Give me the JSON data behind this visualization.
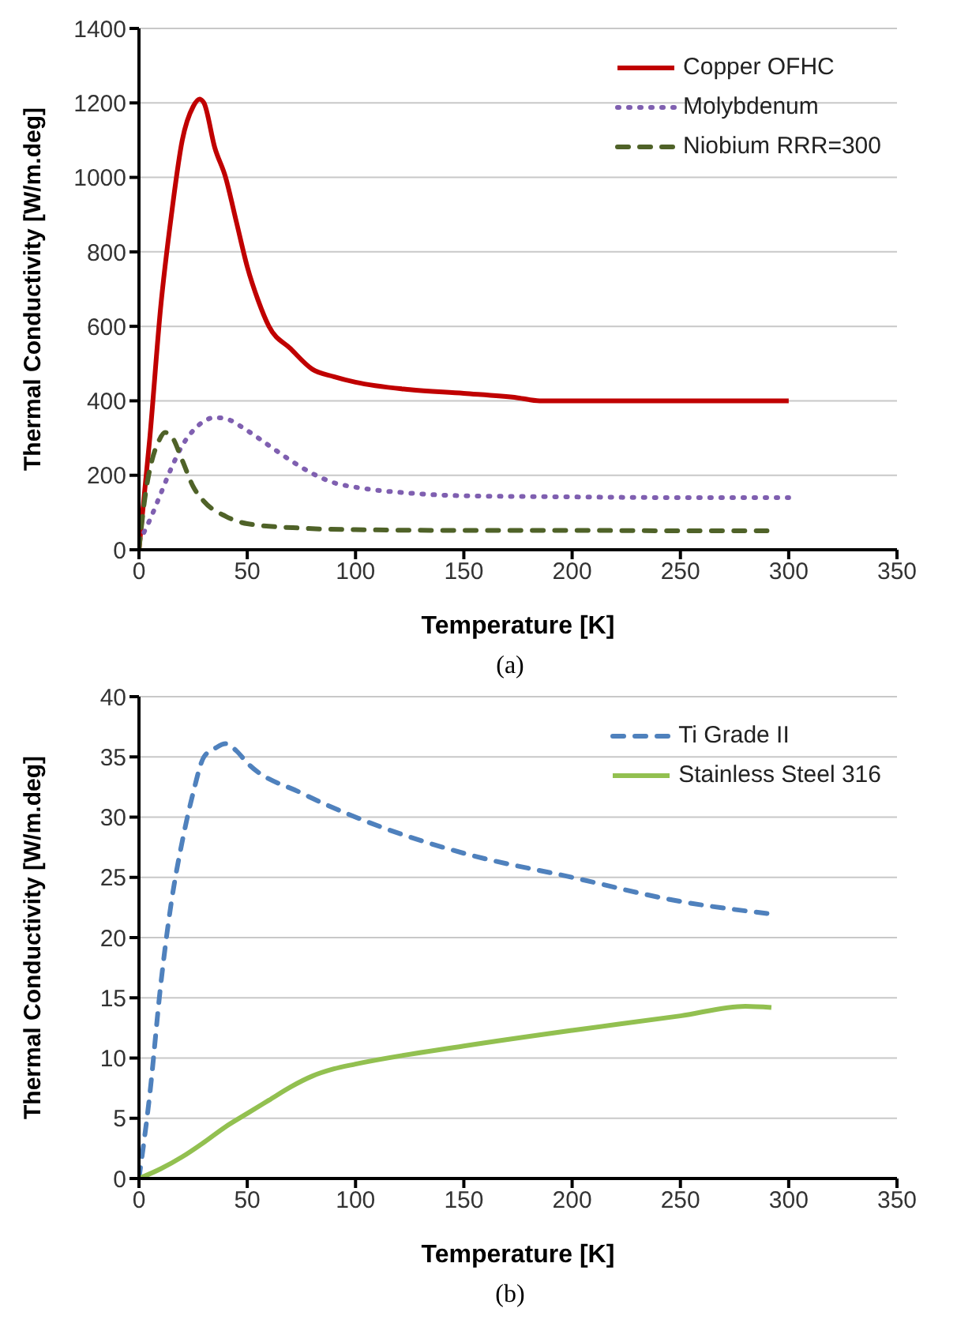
{
  "chart_data": [
    {
      "type": "line",
      "xlabel": "Temperature [K]",
      "ylabel": "Thermal Conductivity [W/m.deg]",
      "xlim": [
        0,
        350
      ],
      "xticks": [
        0,
        50,
        100,
        150,
        200,
        250,
        300,
        350
      ],
      "ylim": [
        0,
        1400
      ],
      "yticks": [
        0,
        200,
        400,
        600,
        800,
        1000,
        1200,
        1400
      ],
      "grid": "y",
      "legend": "top right",
      "marker": "none",
      "annotations": [
        "(a)"
      ],
      "series": [
        {
          "name": "Copper OFHC",
          "color": "#c00000",
          "line_style": "solid",
          "x": [
            0,
            5,
            10,
            15,
            20,
            25,
            28,
            30,
            35,
            40,
            45,
            50,
            55,
            60,
            70,
            80,
            90,
            100,
            125,
            150,
            175,
            185,
            200,
            300
          ],
          "values": [
            0,
            300,
            650,
            900,
            1100,
            1190,
            1210,
            1200,
            1080,
            1000,
            880,
            760,
            670,
            600,
            540,
            485,
            465,
            450,
            430,
            420,
            408,
            400,
            400,
            400
          ]
        },
        {
          "name": "Molybdenum",
          "color": "#7f5fb0",
          "line_style": "dotted",
          "x": [
            0,
            5,
            10,
            15,
            20,
            25,
            30,
            35,
            40,
            50,
            60,
            70,
            80,
            90,
            100,
            125,
            150,
            200,
            250,
            300
          ],
          "values": [
            20,
            80,
            150,
            220,
            280,
            320,
            345,
            355,
            352,
            320,
            280,
            240,
            205,
            180,
            168,
            152,
            145,
            142,
            140,
            140
          ]
        },
        {
          "name": "Niobium RRR=300",
          "color": "#4f6228",
          "line_style": "dashed",
          "x": [
            0,
            3,
            6,
            9,
            12,
            15,
            20,
            25,
            30,
            40,
            50,
            75,
            100,
            150,
            200,
            250,
            290
          ],
          "values": [
            0,
            150,
            240,
            290,
            315,
            305,
            240,
            170,
            130,
            90,
            70,
            58,
            54,
            52,
            52,
            51,
            51
          ]
        }
      ]
    },
    {
      "type": "line",
      "xlabel": "Temperature [K]",
      "ylabel": "Thermal Conductivity [W/m.deg]",
      "xlim": [
        0,
        350
      ],
      "xticks": [
        0,
        50,
        100,
        150,
        200,
        250,
        300,
        350
      ],
      "ylim": [
        0,
        40
      ],
      "yticks": [
        0,
        5,
        10,
        15,
        20,
        25,
        30,
        35,
        40
      ],
      "grid": "y",
      "legend": "top right",
      "marker": "none",
      "annotations": [
        "(b)"
      ],
      "series": [
        {
          "name": "Ti Grade II",
          "color": "#4f81bd",
          "line_style": "dashed",
          "x": [
            0,
            5,
            10,
            15,
            20,
            25,
            30,
            35,
            40,
            45,
            50,
            75,
            100,
            150,
            200,
            250,
            290
          ],
          "values": [
            0,
            7,
            16,
            23,
            28,
            32,
            35,
            35.7,
            36.1,
            35.5,
            34.5,
            32,
            30,
            27,
            25,
            23,
            22
          ]
        },
        {
          "name": "Stainless Steel 316",
          "color": "#92c050",
          "line_style": "solid",
          "x": [
            0,
            10,
            20,
            30,
            40,
            50,
            60,
            70,
            80,
            90,
            100,
            150,
            200,
            250,
            280,
            292
          ],
          "values": [
            0,
            0.8,
            1.8,
            3,
            4.3,
            5.4,
            6.5,
            7.6,
            8.5,
            9.1,
            9.5,
            11,
            12.3,
            13.5,
            14.3,
            14.2
          ]
        }
      ]
    }
  ]
}
